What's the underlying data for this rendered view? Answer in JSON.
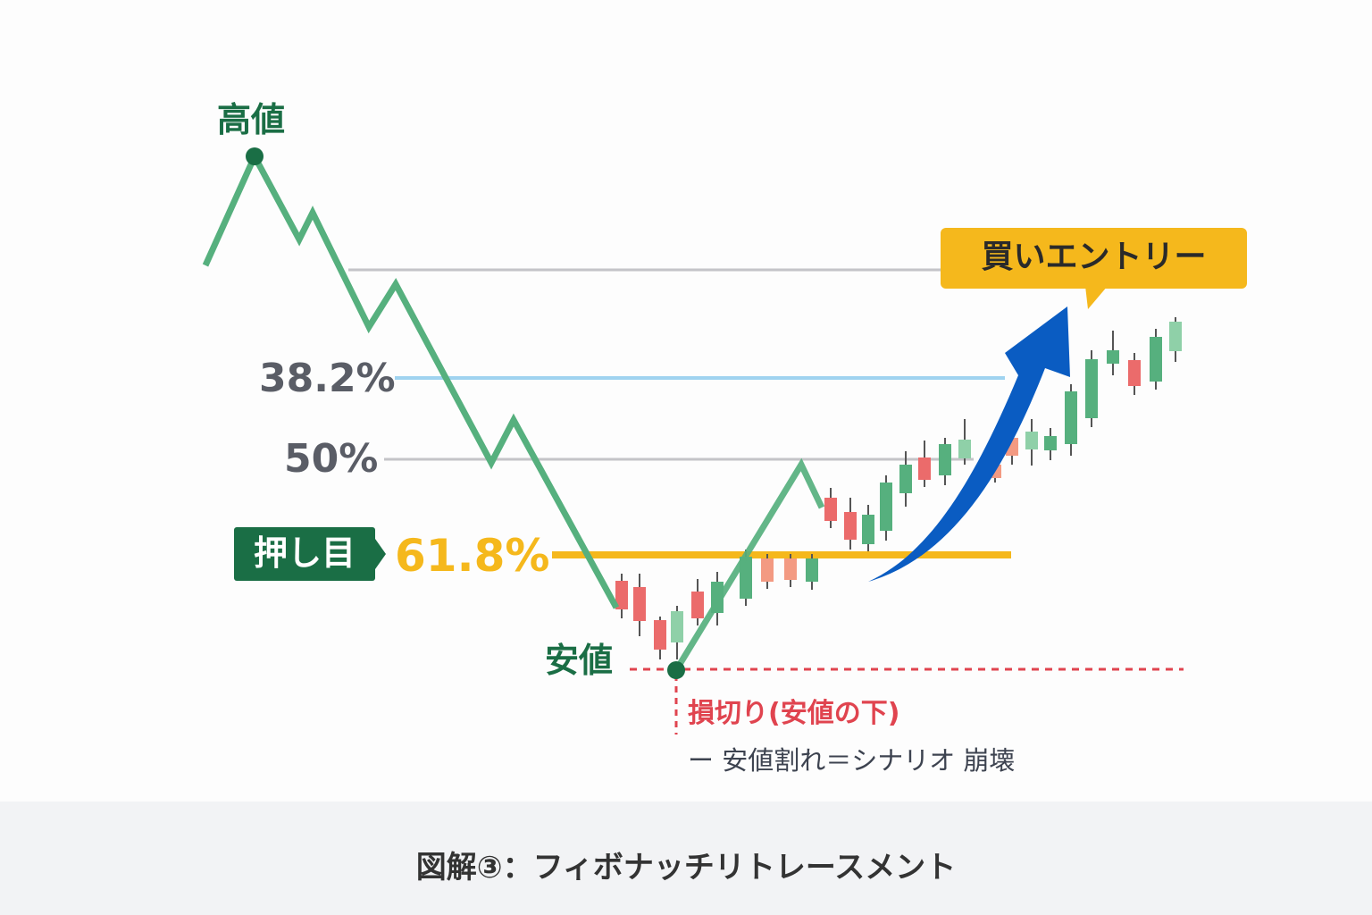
{
  "labels": {
    "high": "高値",
    "low": "安値",
    "fib_382": "38.2%",
    "fib_50": "50%",
    "fib_618": "61.8%",
    "pullback_badge": "押し目",
    "buy_entry": "買いエントリー",
    "stop_loss": "損切り(安値の下)",
    "stop_loss_note": "ー 安値割れ＝シナリオ 崩壊"
  },
  "footer": {
    "title": "図解③：フィボナッチリトレースメント"
  },
  "colors": {
    "price_line": "#56b07e",
    "dark_green": "#1a6e45",
    "fib_382": "#9fd3f0",
    "fib_50": "#c4c4c8",
    "fib_618": "#f5b81c",
    "stop_loss": "#e0444f",
    "arrow": "#0a5cc2",
    "bull_candle": "#56b07e",
    "bear_candle": "#eb6b6b"
  }
}
